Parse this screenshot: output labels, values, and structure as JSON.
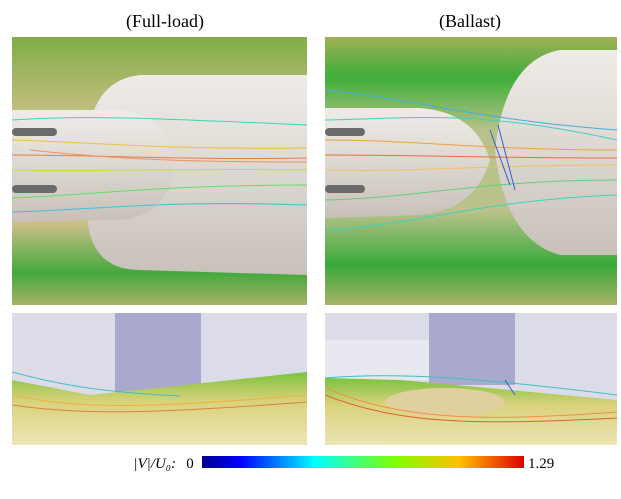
{
  "panels": {
    "left_title": "(Full-load)",
    "right_title": "(Ballast)"
  },
  "colorbar": {
    "label": "|V|/U₀:",
    "min": 0,
    "max": 1.29
  }
}
